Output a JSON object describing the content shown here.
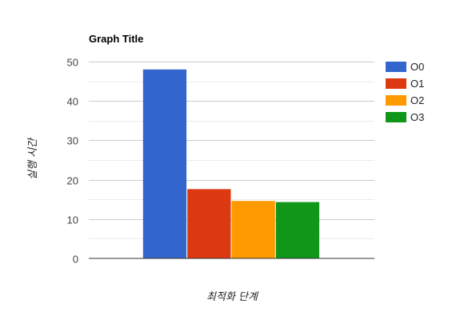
{
  "chart_data": {
    "type": "bar",
    "title": "Graph Title",
    "xlabel": "최적화 단계",
    "ylabel": "실행 시간",
    "categories": [
      ""
    ],
    "series": [
      {
        "name": "O0",
        "values": [
          48
        ],
        "color": "#3366cc"
      },
      {
        "name": "O1",
        "values": [
          17.6
        ],
        "color": "#dc3912"
      },
      {
        "name": "O2",
        "values": [
          14.6
        ],
        "color": "#ff9900"
      },
      {
        "name": "O3",
        "values": [
          14.3
        ],
        "color": "#109618"
      }
    ],
    "ylim": [
      0,
      50
    ],
    "yticks": [
      0,
      10,
      20,
      30,
      40,
      50
    ],
    "grid": true,
    "minor_grid": true,
    "legend": "right"
  }
}
